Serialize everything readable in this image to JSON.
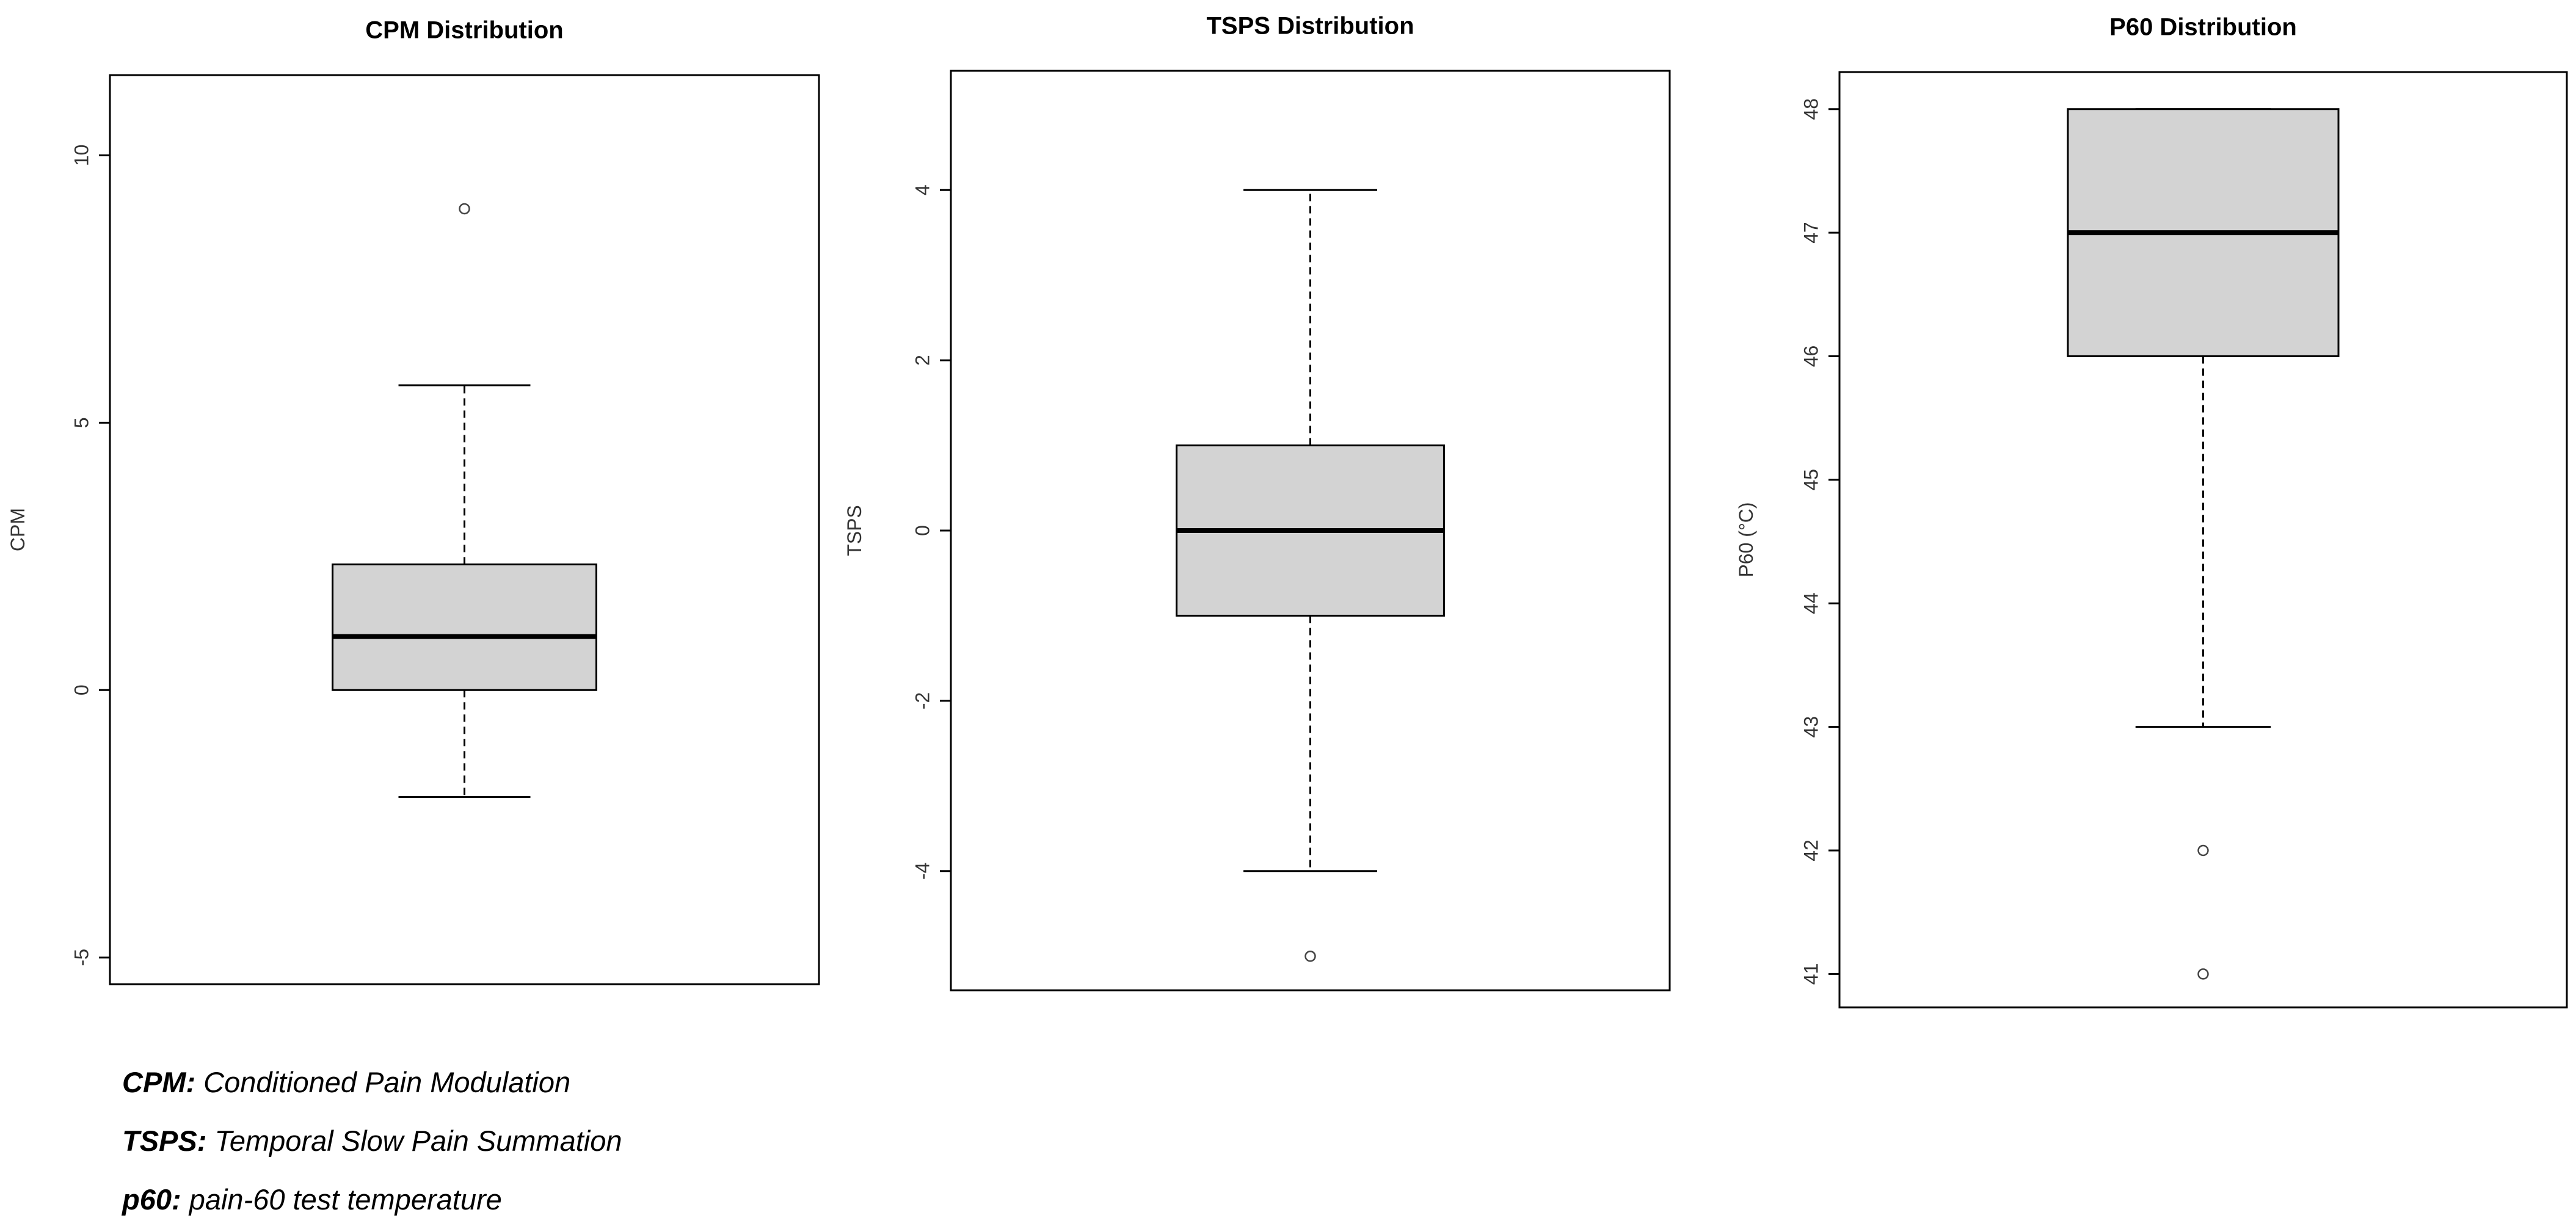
{
  "chart_data": [
    {
      "type": "box",
      "title": "CPM Distribution",
      "ylabel": "CPM",
      "ylim": [
        -5.5,
        11.5
      ],
      "yticks": [
        -5,
        0,
        5,
        10
      ],
      "ytick_labels": [
        "-5",
        "0",
        "5",
        "10"
      ],
      "grid": false,
      "box": {
        "whisker_low": -2,
        "q1": 0,
        "median": 1,
        "q3": 2.35,
        "whisker_high": 5.7
      },
      "outliers": [
        9
      ]
    },
    {
      "type": "box",
      "title": "TSPS Distribution",
      "ylabel": "TSPS",
      "ylim": [
        -5.4,
        5.4
      ],
      "yticks": [
        -4,
        -2,
        0,
        2,
        4
      ],
      "ytick_labels": [
        "-4",
        "-2",
        "0",
        "2",
        "4"
      ],
      "grid": false,
      "box": {
        "whisker_low": -4,
        "q1": -1,
        "median": 0,
        "q3": 1,
        "whisker_high": 4
      },
      "outliers": [
        -5
      ]
    },
    {
      "type": "box",
      "title": "P60 Distribution",
      "ylabel": "P60 (°C)",
      "ylim": [
        40.73,
        48.3
      ],
      "yticks": [
        41,
        42,
        43,
        44,
        45,
        46,
        47,
        48
      ],
      "ytick_labels": [
        "41",
        "42",
        "43",
        "44",
        "45",
        "46",
        "47",
        "48"
      ],
      "grid": false,
      "box": {
        "whisker_low": 43,
        "q1": 46,
        "median": 47,
        "q3": 48,
        "whisker_high": 48
      },
      "outliers": [
        42,
        41
      ]
    }
  ],
  "legend": [
    {
      "term": "CPM:",
      "description": "Conditioned Pain Modulation"
    },
    {
      "term": "TSPS:",
      "description": "Temporal Slow Pain Summation"
    },
    {
      "term": "p60:",
      "description": "pain-60 test temperature"
    }
  ],
  "colors": {
    "box_fill": "#d3d3d3",
    "stroke": "#000000",
    "outlier": "#444444"
  }
}
